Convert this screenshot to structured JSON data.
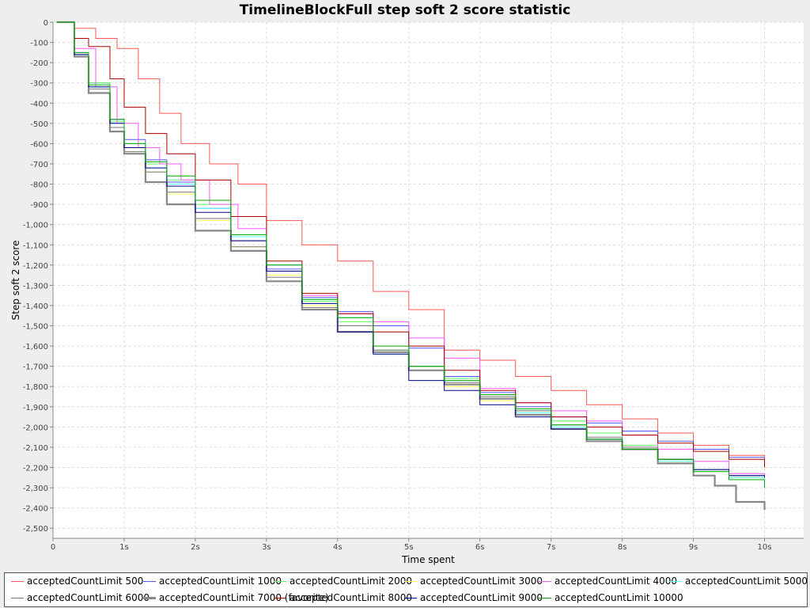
{
  "chart_data": {
    "type": "line",
    "title": "TimelineBlockFull step soft 2 score statistic",
    "xlabel": "Time spent",
    "ylabel": "Step soft 2 score",
    "xlim": [
      0,
      10.55
    ],
    "ylim": [
      -2550,
      0
    ],
    "x_ticks": [
      "0",
      "1s",
      "2s",
      "3s",
      "4s",
      "5s",
      "6s",
      "7s",
      "8s",
      "9s",
      "10s"
    ],
    "x_tick_values": [
      0,
      1,
      2,
      3,
      4,
      5,
      6,
      7,
      8,
      9,
      10
    ],
    "y_ticks": [
      "0",
      "-100",
      "-200",
      "-300",
      "-400",
      "-500",
      "-600",
      "-700",
      "-800",
      "-900",
      "-1,000",
      "-1,100",
      "-1,200",
      "-1,300",
      "-1,400",
      "-1,500",
      "-1,600",
      "-1,700",
      "-1,800",
      "-1,900",
      "-2,000",
      "-2,100",
      "-2,200",
      "-2,300",
      "-2,400",
      "-2,500"
    ],
    "y_tick_values": [
      0,
      -100,
      -200,
      -300,
      -400,
      -500,
      -600,
      -700,
      -800,
      -900,
      -1000,
      -1100,
      -1200,
      -1300,
      -1400,
      -1500,
      -1600,
      -1700,
      -1800,
      -1900,
      -2000,
      -2100,
      -2200,
      -2300,
      -2400,
      -2500
    ],
    "grid": true,
    "legend_position": "bottom",
    "series": [
      {
        "name": "acceptedCountLimit 500",
        "color": "#ff5555",
        "width": 1,
        "x": [
          0.05,
          0.3,
          0.6,
          0.9,
          1.2,
          1.5,
          1.8,
          2.2,
          2.6,
          3.0,
          3.5,
          4.0,
          4.5,
          5.0,
          5.5,
          6.0,
          6.5,
          7.0,
          7.5,
          8.0,
          8.5,
          9.0,
          9.5,
          10.0
        ],
        "y": [
          0,
          -30,
          -80,
          -130,
          -280,
          -450,
          -600,
          -700,
          -800,
          -980,
          -1100,
          -1180,
          -1330,
          -1420,
          -1620,
          -1670,
          -1750,
          -1820,
          -1890,
          -1960,
          -2030,
          -2090,
          -2140,
          -2180
        ]
      },
      {
        "name": "acceptedCountLimit 1000",
        "color": "#5555ff",
        "width": 1,
        "x": [
          0.05,
          0.3,
          0.5,
          0.8,
          1.0,
          1.3,
          1.6,
          2.0,
          2.5,
          3.0,
          3.5,
          4.0,
          4.5,
          5.0,
          5.5,
          6.0,
          6.5,
          7.0,
          7.5,
          8.0,
          8.5,
          9.0,
          9.5,
          10.0
        ],
        "y": [
          0,
          -150,
          -300,
          -480,
          -580,
          -680,
          -790,
          -920,
          -1080,
          -1220,
          -1360,
          -1430,
          -1500,
          -1610,
          -1750,
          -1830,
          -1900,
          -1950,
          -1980,
          -2020,
          -2070,
          -2110,
          -2150,
          -2170
        ]
      },
      {
        "name": "acceptedCountLimit 2000",
        "color": "#55ff55",
        "width": 1,
        "x": [
          0.05,
          0.3,
          0.5,
          0.8,
          1.0,
          1.3,
          1.6,
          2.0,
          2.5,
          3.0,
          3.5,
          4.0,
          4.5,
          5.0,
          5.5,
          6.0,
          6.5,
          7.0,
          7.5,
          8.0,
          8.5,
          9.0,
          9.5,
          10.0
        ],
        "y": [
          0,
          -160,
          -300,
          -490,
          -600,
          -700,
          -780,
          -900,
          -1050,
          -1200,
          -1380,
          -1480,
          -1620,
          -1700,
          -1760,
          -1850,
          -1920,
          -1970,
          -2030,
          -2090,
          -2160,
          -2210,
          -2250,
          -2270
        ]
      },
      {
        "name": "acceptedCountLimit 3000",
        "color": "#ffff55",
        "width": 1,
        "x": [
          0.05,
          0.3,
          0.5,
          0.8,
          1.0,
          1.3,
          1.6,
          2.0,
          2.5,
          3.0,
          3.5,
          4.0,
          4.5,
          5.0,
          5.5,
          6.0,
          6.5,
          7.0,
          7.5,
          8.0,
          8.5,
          9.0,
          9.5,
          10.0
        ],
        "y": [
          0,
          -160,
          -350,
          -520,
          -640,
          -740,
          -850,
          -980,
          -1110,
          -1250,
          -1400,
          -1500,
          -1640,
          -1720,
          -1800,
          -1870,
          -1940,
          -2010,
          -2060,
          -2110,
          -2170,
          -2220,
          -2250,
          -2260
        ]
      },
      {
        "name": "acceptedCountLimit 4000",
        "color": "#ff55ff",
        "width": 1,
        "x": [
          0.05,
          0.3,
          0.6,
          0.9,
          1.2,
          1.5,
          1.8,
          2.2,
          2.6,
          3.0,
          3.5,
          4.0,
          4.5,
          5.0,
          5.5,
          6.0,
          6.5,
          7.0,
          7.5,
          8.0,
          8.5,
          9.0,
          9.5,
          10.0
        ],
        "y": [
          0,
          -130,
          -320,
          -500,
          -620,
          -700,
          -780,
          -900,
          -1020,
          -1200,
          -1350,
          -1440,
          -1480,
          -1560,
          -1660,
          -1810,
          -1880,
          -1920,
          -1970,
          -2040,
          -2110,
          -2170,
          -2230,
          -2270
        ]
      },
      {
        "name": "acceptedCountLimit 5000",
        "color": "#55ffff",
        "width": 1,
        "x": [
          0.05,
          0.3,
          0.5,
          0.8,
          1.0,
          1.3,
          1.6,
          2.0,
          2.5,
          3.0,
          3.5,
          4.0,
          4.5,
          5.0,
          5.5,
          6.0,
          6.5,
          7.0,
          7.5,
          8.0,
          8.5,
          9.0,
          9.5,
          10.0
        ],
        "y": [
          0,
          -160,
          -320,
          -500,
          -620,
          -720,
          -800,
          -920,
          -1060,
          -1200,
          -1370,
          -1460,
          -1640,
          -1720,
          -1790,
          -1860,
          -1930,
          -2000,
          -2060,
          -2110,
          -2170,
          -2220,
          -2250,
          -2260
        ]
      },
      {
        "name": "acceptedCountLimit 6000",
        "color": "#777777",
        "width": 1,
        "x": [
          0.05,
          0.3,
          0.5,
          0.8,
          1.0,
          1.3,
          1.6,
          2.0,
          2.5,
          3.0,
          3.5,
          4.0,
          4.5,
          5.0,
          5.5,
          6.0,
          6.5,
          7.0,
          7.5,
          8.0,
          8.5,
          9.0,
          9.5,
          10.0
        ],
        "y": [
          0,
          -160,
          -330,
          -520,
          -640,
          -740,
          -840,
          -970,
          -1110,
          -1260,
          -1410,
          -1500,
          -1620,
          -1700,
          -1780,
          -1850,
          -1920,
          -1990,
          -2050,
          -2100,
          -2160,
          -2210,
          -2240,
          -2250
        ]
      },
      {
        "name": "acceptedCountLimit 7000 (favorite)",
        "color": "#888888",
        "width": 2.2,
        "x": [
          0.05,
          0.3,
          0.5,
          0.8,
          1.0,
          1.3,
          1.6,
          2.0,
          2.5,
          3.0,
          3.5,
          4.0,
          4.5,
          5.0,
          5.5,
          6.0,
          6.5,
          7.0,
          7.5,
          8.0,
          8.5,
          9.0,
          9.3,
          9.6,
          10.0
        ],
        "y": [
          0,
          -170,
          -350,
          -540,
          -650,
          -790,
          -900,
          -1030,
          -1130,
          -1280,
          -1420,
          -1530,
          -1630,
          -1720,
          -1790,
          -1860,
          -1940,
          -2010,
          -2070,
          -2110,
          -2180,
          -2240,
          -2290,
          -2370,
          -2410
        ]
      },
      {
        "name": "acceptedCountLimit 8000",
        "color": "#aa0000",
        "width": 1,
        "x": [
          0.05,
          0.3,
          0.5,
          0.8,
          1.0,
          1.3,
          1.6,
          2.0,
          2.5,
          3.0,
          3.5,
          4.0,
          4.5,
          5.0,
          5.5,
          6.0,
          6.5,
          7.0,
          7.5,
          8.0,
          8.5,
          9.0,
          9.5,
          10.0
        ],
        "y": [
          0,
          -80,
          -120,
          -280,
          -420,
          -550,
          -650,
          -780,
          -960,
          -1180,
          -1340,
          -1440,
          -1530,
          -1600,
          -1720,
          -1820,
          -1880,
          -1950,
          -2000,
          -2040,
          -2080,
          -2120,
          -2160,
          -2200
        ]
      },
      {
        "name": "acceptedCountLimit 9000",
        "color": "#000088",
        "width": 1,
        "x": [
          0.05,
          0.3,
          0.5,
          0.8,
          1.0,
          1.3,
          1.6,
          2.0,
          2.5,
          3.0,
          3.5,
          4.0,
          4.5,
          5.0,
          5.5,
          6.0,
          6.5,
          7.0,
          7.5,
          8.0,
          8.5,
          9.0,
          9.5,
          10.0
        ],
        "y": [
          0,
          -160,
          -320,
          -500,
          -620,
          -720,
          -810,
          -940,
          -1080,
          -1230,
          -1390,
          -1530,
          -1640,
          -1770,
          -1820,
          -1890,
          -1950,
          -2010,
          -2060,
          -2110,
          -2160,
          -2210,
          -2240,
          -2250
        ]
      },
      {
        "name": "acceptedCountLimit 10000",
        "color": "#00aa00",
        "width": 1,
        "x": [
          0.05,
          0.3,
          0.5,
          0.8,
          1.0,
          1.3,
          1.6,
          2.0,
          2.5,
          3.0,
          3.5,
          4.0,
          4.5,
          5.0,
          5.5,
          6.0,
          6.5,
          7.0,
          7.5,
          8.0,
          8.5,
          9.0,
          9.5,
          10.0
        ],
        "y": [
          0,
          -150,
          -310,
          -480,
          -600,
          -690,
          -760,
          -880,
          -1050,
          -1200,
          -1370,
          -1460,
          -1600,
          -1700,
          -1770,
          -1840,
          -1910,
          -1990,
          -2060,
          -2110,
          -2160,
          -2220,
          -2260,
          -2300
        ]
      }
    ]
  }
}
